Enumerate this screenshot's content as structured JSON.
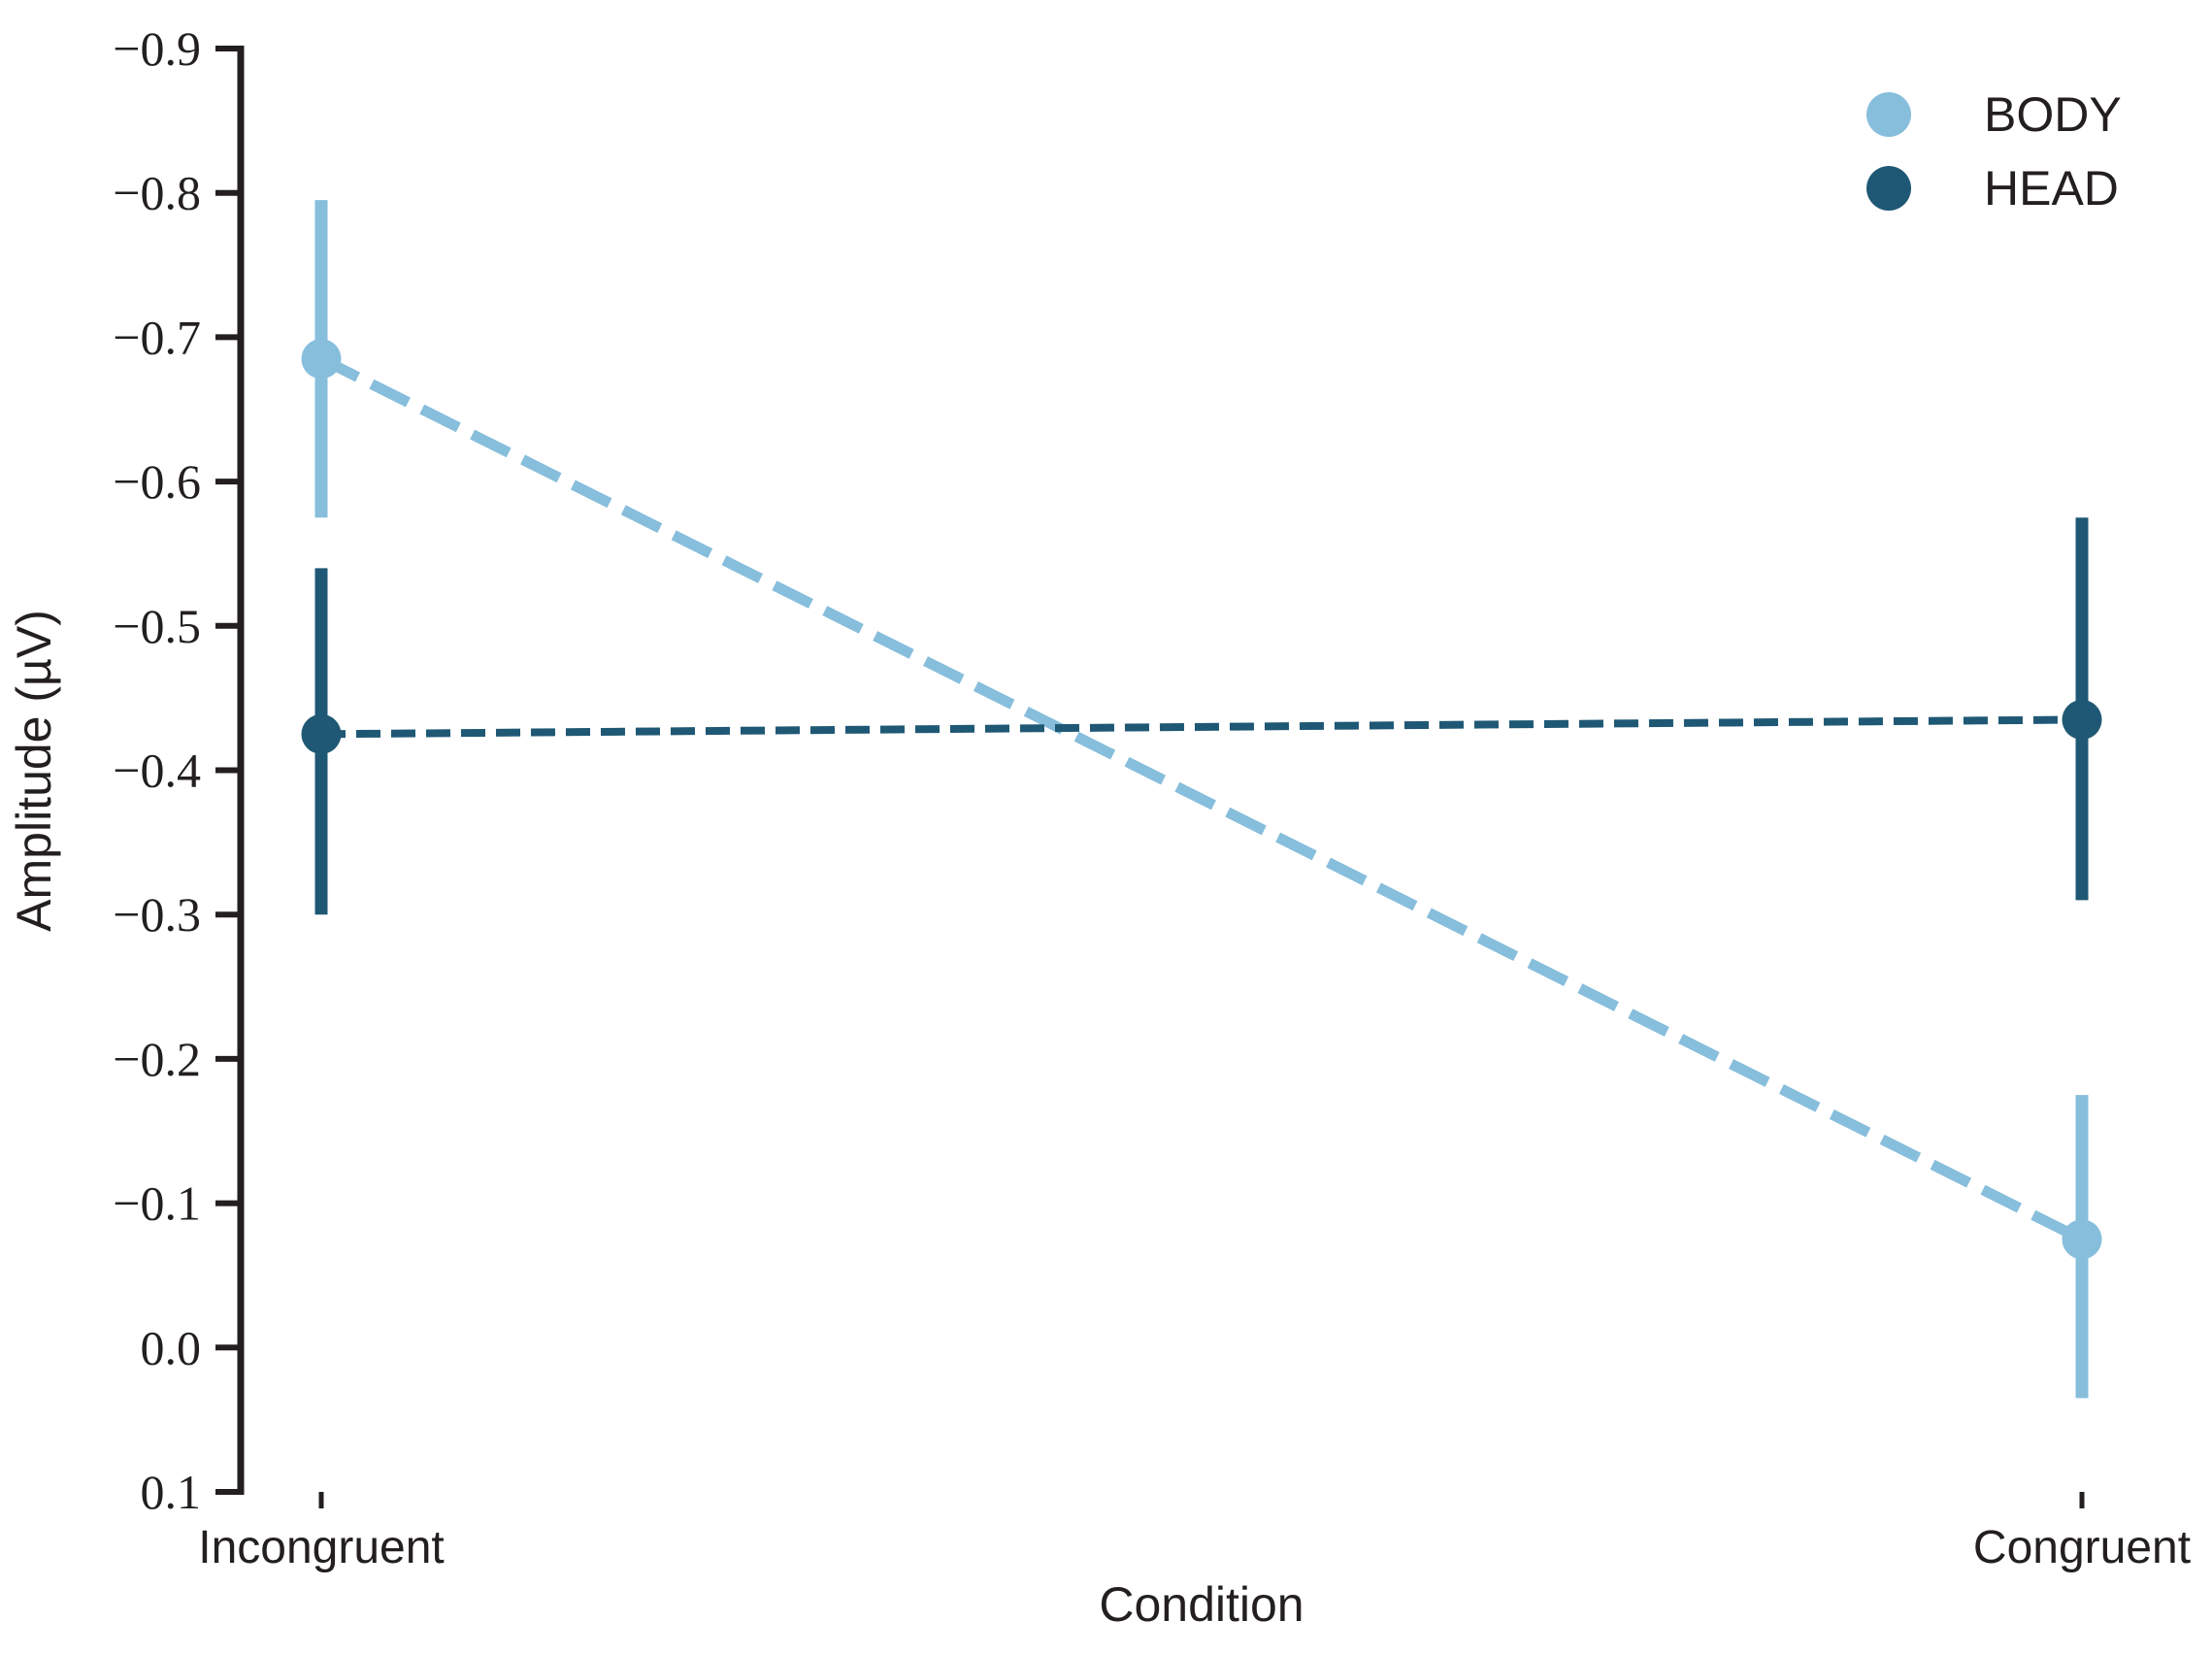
{
  "figure": {
    "background": "#ffffff",
    "axis_color": "#231f20"
  },
  "chart_data": {
    "type": "line",
    "subtype": "pointplot-with-error-bars",
    "title": "",
    "xlabel": "Condition",
    "ylabel": "Amplitude (µV)",
    "categories": [
      "Incongruent",
      "Congruent"
    ],
    "y_axis": {
      "label": "Amplitude (µV)",
      "ticks": [
        -0.9,
        -0.8,
        -0.7,
        -0.6,
        -0.5,
        -0.4,
        -0.3,
        -0.2,
        -0.1,
        0,
        0.1
      ],
      "inverted": true,
      "top_value": -0.9,
      "bottom_value": 0.1
    },
    "grid": false,
    "line_style": "dashed",
    "legend": {
      "position": "upper-right",
      "entries": [
        "BODY",
        "HEAD"
      ]
    },
    "series": [
      {
        "name": "BODY",
        "color": "#87BEDC",
        "values": [
          -0.685,
          -0.075
        ],
        "err_low": [
          -0.795,
          -0.175
        ],
        "err_high": [
          -0.575,
          0.035
        ]
      },
      {
        "name": "HEAD",
        "color": "#1F5874",
        "values": [
          -0.425,
          -0.435
        ],
        "err_low": [
          -0.54,
          -0.575
        ],
        "err_high": [
          -0.3,
          -0.31
        ]
      }
    ]
  }
}
